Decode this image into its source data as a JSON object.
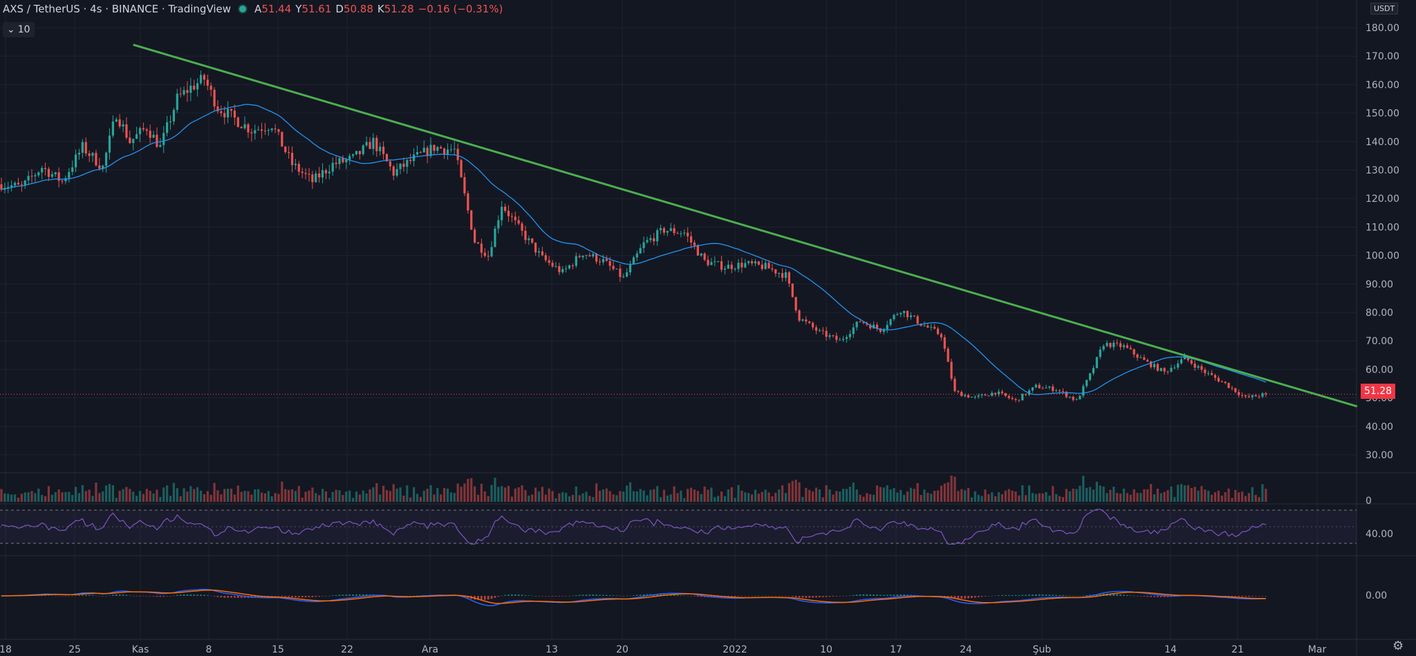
{
  "legend": {
    "symbol": "AXS / TetherUS · 4s · BINANCE · TradingView",
    "open_label": "A",
    "open": "51.44",
    "high_label": "Y",
    "high": "51.61",
    "low_label": "D",
    "low": "50.88",
    "close_label": "K",
    "close": "51.28",
    "change": "−0.16 (−0.31%)"
  },
  "collapse_label": "10",
  "currency": "USDT",
  "last_price": "51.28",
  "colors": {
    "bg": "#131722",
    "up": "#26a69a",
    "down": "#ef5350",
    "ma": "#2196f3",
    "trend": "#4caf50",
    "rsi": "#7e57c2",
    "macd": "#2962ff",
    "signal": "#ff6d00",
    "grid": "#1f2330"
  },
  "chart_data": {
    "type": "candlestick",
    "price_axis": {
      "ticks": [
        30,
        40,
        50,
        60,
        70,
        80,
        90,
        100,
        110,
        120,
        130,
        140,
        150,
        160,
        170,
        180
      ],
      "tick_labels": [
        "30.00",
        "40.00",
        "50.00",
        "60.00",
        "70.00",
        "80.00",
        "90.00",
        "100.00",
        "110.00",
        "120.00",
        "130.00",
        "140.00",
        "150.00",
        "160.00",
        "170.00",
        "180.00"
      ]
    },
    "volume_axis": {
      "tick_labels": [
        "0"
      ]
    },
    "rsi_axis": {
      "tick_labels": [
        "40.00"
      ]
    },
    "macd_axis": {
      "tick_labels": [
        "0.00"
      ]
    },
    "time_axis": {
      "labels": [
        "18",
        "25",
        "Kas",
        "8",
        "15",
        "22",
        "Ara",
        "13",
        "20",
        "2022",
        "10",
        "17",
        "24",
        "Şub",
        "14",
        "21",
        "Mar"
      ]
    },
    "price_path": [
      {
        "t": 0,
        "p": 125
      },
      {
        "t": 6,
        "p": 124
      },
      {
        "t": 12,
        "p": 131
      },
      {
        "t": 18,
        "p": 126
      },
      {
        "t": 24,
        "p": 138
      },
      {
        "t": 30,
        "p": 131
      },
      {
        "t": 34,
        "p": 150
      },
      {
        "t": 38,
        "p": 140
      },
      {
        "t": 43,
        "p": 145
      },
      {
        "t": 47,
        "p": 138
      },
      {
        "t": 52,
        "p": 155
      },
      {
        "t": 56,
        "p": 159
      },
      {
        "t": 60,
        "p": 162
      },
      {
        "t": 64,
        "p": 152
      },
      {
        "t": 69,
        "p": 148
      },
      {
        "t": 74,
        "p": 144
      },
      {
        "t": 80,
        "p": 146
      },
      {
        "t": 86,
        "p": 132
      },
      {
        "t": 92,
        "p": 126
      },
      {
        "t": 98,
        "p": 132
      },
      {
        "t": 104,
        "p": 134
      },
      {
        "t": 110,
        "p": 140
      },
      {
        "t": 116,
        "p": 129
      },
      {
        "t": 122,
        "p": 134
      },
      {
        "t": 128,
        "p": 138
      },
      {
        "t": 134,
        "p": 137
      },
      {
        "t": 140,
        "p": 105
      },
      {
        "t": 144,
        "p": 100
      },
      {
        "t": 148,
        "p": 118
      },
      {
        "t": 154,
        "p": 108
      },
      {
        "t": 160,
        "p": 99
      },
      {
        "t": 166,
        "p": 94
      },
      {
        "t": 172,
        "p": 101
      },
      {
        "t": 178,
        "p": 98
      },
      {
        "t": 184,
        "p": 92
      },
      {
        "t": 190,
        "p": 104
      },
      {
        "t": 196,
        "p": 109
      },
      {
        "t": 202,
        "p": 108
      },
      {
        "t": 208,
        "p": 98
      },
      {
        "t": 214,
        "p": 96
      },
      {
        "t": 220,
        "p": 97
      },
      {
        "t": 226,
        "p": 96
      },
      {
        "t": 232,
        "p": 93
      },
      {
        "t": 236,
        "p": 78
      },
      {
        "t": 242,
        "p": 73
      },
      {
        "t": 248,
        "p": 70
      },
      {
        "t": 254,
        "p": 77
      },
      {
        "t": 260,
        "p": 74
      },
      {
        "t": 266,
        "p": 81
      },
      {
        "t": 272,
        "p": 76
      },
      {
        "t": 278,
        "p": 72
      },
      {
        "t": 282,
        "p": 52
      },
      {
        "t": 288,
        "p": 50
      },
      {
        "t": 294,
        "p": 52
      },
      {
        "t": 300,
        "p": 49
      },
      {
        "t": 306,
        "p": 54
      },
      {
        "t": 312,
        "p": 53
      },
      {
        "t": 318,
        "p": 49
      },
      {
        "t": 322,
        "p": 58
      },
      {
        "t": 326,
        "p": 69
      },
      {
        "t": 332,
        "p": 68
      },
      {
        "t": 338,
        "p": 63
      },
      {
        "t": 344,
        "p": 59
      },
      {
        "t": 350,
        "p": 64
      },
      {
        "t": 356,
        "p": 59
      },
      {
        "t": 362,
        "p": 55
      },
      {
        "t": 368,
        "p": 50
      },
      {
        "t": 374,
        "p": 51.28
      }
    ],
    "trendline": {
      "start": {
        "t": 39,
        "p": 174
      },
      "end": {
        "t": 401,
        "p": 47
      }
    }
  }
}
